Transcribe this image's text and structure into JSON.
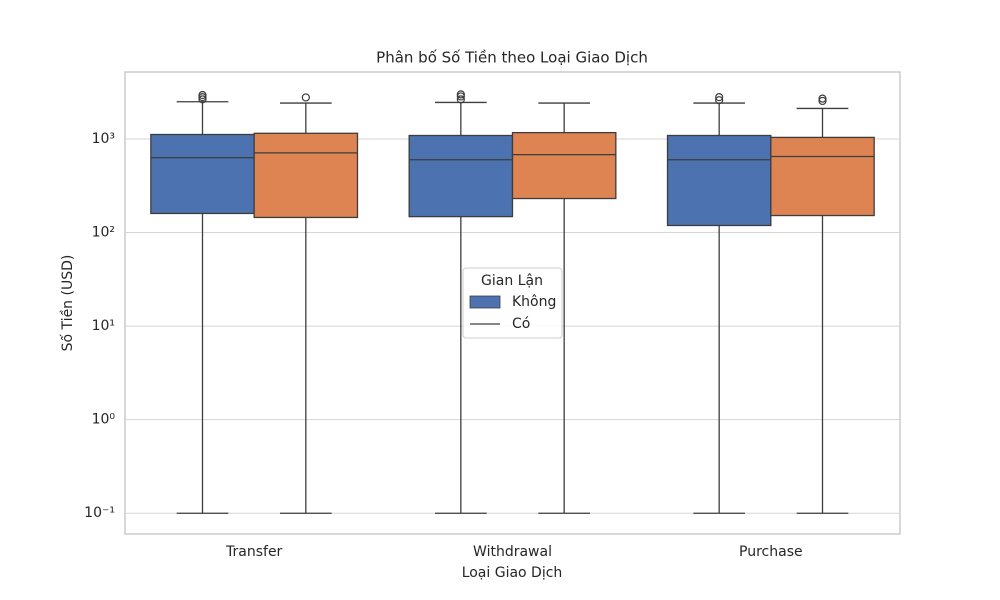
{
  "chart_data": {
    "type": "box",
    "title": "Phân bố Số Tiền theo Loại Giao Dịch",
    "x_label": "Loại Giao Dịch",
    "y_label": "Số Tiền (USD)",
    "categories": [
      "Transfer",
      "Withdrawal",
      "Purchase"
    ],
    "log_scale": true,
    "grid": true,
    "ylim": [
      0.06,
      5200
    ],
    "yticks": [
      {
        "value": 0.1,
        "label": "10⁻¹"
      },
      {
        "value": 1,
        "label": "10⁰"
      },
      {
        "value": 10,
        "label": "10¹"
      },
      {
        "value": 100,
        "label": "10²"
      },
      {
        "value": 1000,
        "label": "10³"
      }
    ],
    "legend_title": "Gian Lận",
    "legend_position": "center",
    "series": [
      {
        "name": "Không",
        "color": "#4c72b0",
        "whisker_low": [
          0.1,
          0.1,
          0.1
        ],
        "q1": [
          160,
          148,
          119
        ],
        "median": [
          632,
          600,
          600
        ],
        "q3": [
          1117,
          1090,
          1090
        ],
        "whisker_high": [
          2500,
          2460,
          2420
        ],
        "outliers": [
          [
            2650,
            2800,
            2950
          ],
          [
            2650,
            2850,
            3000
          ],
          [
            2600,
            2800
          ]
        ]
      },
      {
        "name": "Có",
        "color": "#dd8452",
        "whisker_low": [
          0.1,
          0.1,
          0.1
        ],
        "q1": [
          145,
          231,
          152
        ],
        "median": [
          710,
          680,
          650
        ],
        "q3": [
          1150,
          1170,
          1040
        ],
        "whisker_high": [
          2420,
          2420,
          2120
        ],
        "outliers": [
          [
            2780
          ],
          [],
          [
            2550,
            2700
          ]
        ]
      }
    ]
  }
}
